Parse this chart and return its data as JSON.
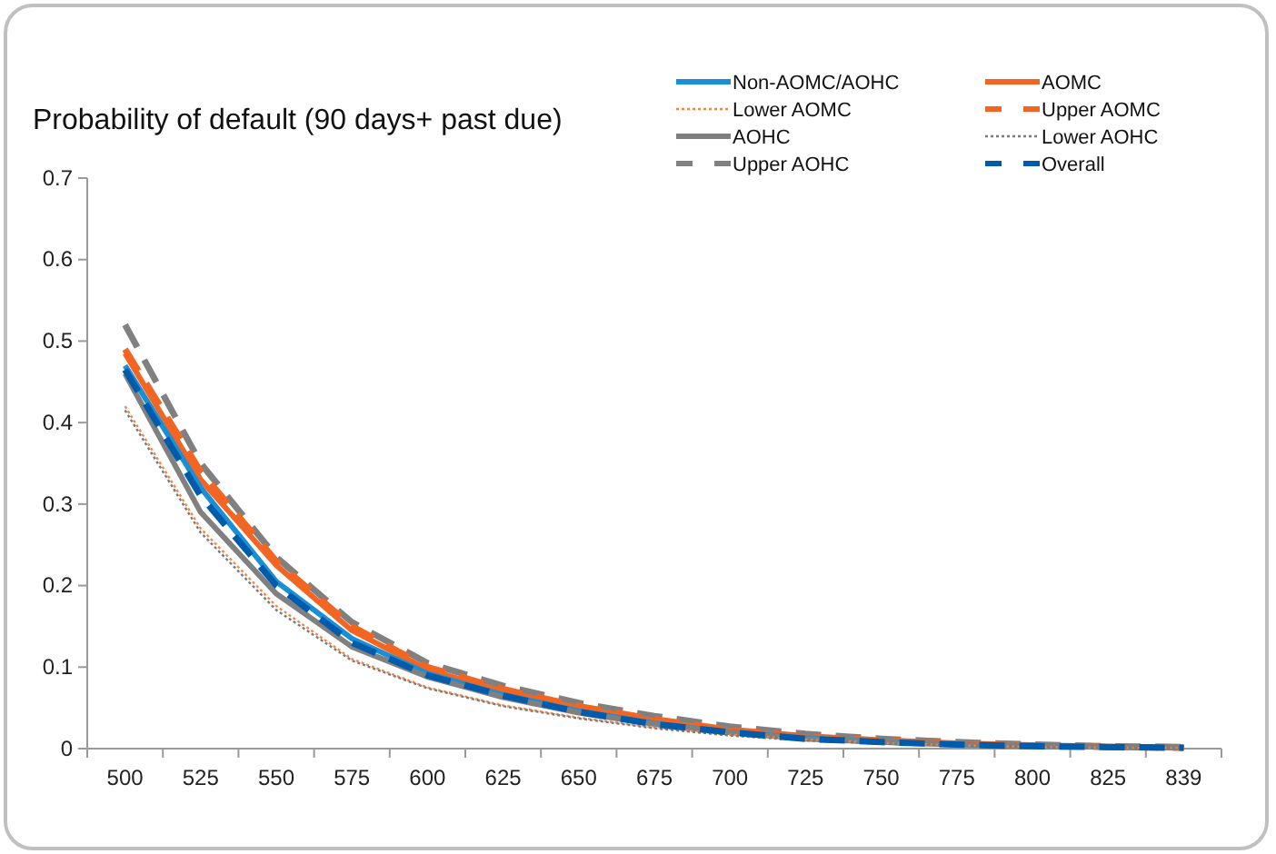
{
  "chart_data": {
    "type": "line",
    "title": "Probability of default (90 days+ past due)",
    "categories": [
      "500",
      "525",
      "550",
      "575",
      "600",
      "625",
      "650",
      "675",
      "700",
      "725",
      "750",
      "775",
      "800",
      "825",
      "839"
    ],
    "series": [
      {
        "name": "Non-AOMC/AOHC",
        "color": "#1a8fd6",
        "line_style": "solid",
        "values": [
          0.47,
          0.32,
          0.205,
          0.135,
          0.092,
          0.066,
          0.046,
          0.031,
          0.02,
          0.013,
          0.008,
          0.005,
          0.003,
          0.002,
          0.001
        ]
      },
      {
        "name": "AOMC",
        "color": "#f26522",
        "line_style": "solid",
        "values": [
          0.485,
          0.33,
          0.225,
          0.145,
          0.097,
          0.07,
          0.05,
          0.034,
          0.022,
          0.014,
          0.009,
          0.006,
          0.004,
          0.002,
          0.001
        ]
      },
      {
        "name": "Lower AOMC",
        "color": "#f4864a",
        "line_style": "dotted",
        "values": [
          0.42,
          0.27,
          0.175,
          0.11,
          0.075,
          0.053,
          0.038,
          0.026,
          0.017,
          0.011,
          0.007,
          0.004,
          0.002,
          0.001,
          0.001
        ]
      },
      {
        "name": "Upper AOMC",
        "color": "#f26522",
        "line_style": "dashed",
        "values": [
          0.49,
          0.34,
          0.23,
          0.15,
          0.1,
          0.073,
          0.052,
          0.036,
          0.023,
          0.015,
          0.01,
          0.006,
          0.004,
          0.002,
          0.001
        ]
      },
      {
        "name": "AOHC",
        "color": "#808080",
        "line_style": "solid",
        "values": [
          0.46,
          0.29,
          0.19,
          0.125,
          0.088,
          0.063,
          0.044,
          0.03,
          0.02,
          0.012,
          0.008,
          0.005,
          0.003,
          0.002,
          0.001
        ]
      },
      {
        "name": "Lower AOHC",
        "color": "#7a7a7a",
        "line_style": "dotted",
        "values": [
          0.415,
          0.265,
          0.17,
          0.108,
          0.074,
          0.052,
          0.037,
          0.025,
          0.016,
          0.01,
          0.006,
          0.004,
          0.002,
          0.001,
          0.001
        ]
      },
      {
        "name": "Upper AOHC",
        "color": "#808080",
        "line_style": "dashed",
        "values": [
          0.52,
          0.35,
          0.235,
          0.155,
          0.105,
          0.077,
          0.056,
          0.04,
          0.027,
          0.018,
          0.012,
          0.008,
          0.005,
          0.003,
          0.002
        ]
      },
      {
        "name": "Overall",
        "color": "#005bab",
        "line_style": "dashed",
        "values": [
          0.465,
          0.31,
          0.2,
          0.13,
          0.09,
          0.065,
          0.045,
          0.03,
          0.02,
          0.012,
          0.008,
          0.005,
          0.003,
          0.002,
          0.001
        ]
      }
    ],
    "ylim": [
      0,
      0.7
    ],
    "yticks": [
      0,
      0.1,
      0.2,
      0.3,
      0.4,
      0.5,
      0.6,
      0.7
    ],
    "grid": false,
    "legend": "top right",
    "marker": "none"
  }
}
